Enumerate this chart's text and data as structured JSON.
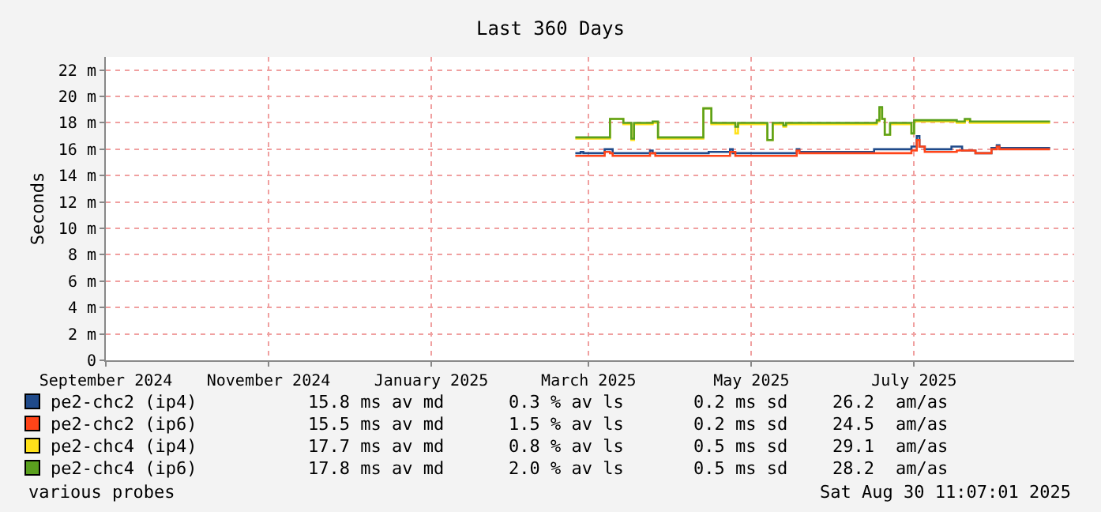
{
  "chart_data": {
    "type": "step",
    "title": "Last 360 Days",
    "ylabel": "Seconds",
    "xlim": [
      "2024-09-01",
      "2025-08-30"
    ],
    "xticks": [
      {
        "value": "2024-09-01",
        "label": "September 2024"
      },
      {
        "value": "2024-11-01",
        "label": "November 2024"
      },
      {
        "value": "2025-01-01",
        "label": "January 2025"
      },
      {
        "value": "2025-03-01",
        "label": "March 2025"
      },
      {
        "value": "2025-05-01",
        "label": "May 2025"
      },
      {
        "value": "2025-07-01",
        "label": "July 2025"
      }
    ],
    "ylim": [
      0,
      23
    ],
    "yticks": [
      0,
      {
        "value": 2,
        "label": "2 m"
      },
      {
        "value": 4,
        "label": "4 m"
      },
      {
        "value": 6,
        "label": "6 m"
      },
      {
        "value": 8,
        "label": "8 m"
      },
      {
        "value": 10,
        "label": "10 m"
      },
      {
        "value": 12,
        "label": "12 m"
      },
      {
        "value": 14,
        "label": "14 m"
      },
      {
        "value": 16,
        "label": "16 m"
      },
      {
        "value": 18,
        "label": "18 m"
      },
      {
        "value": 20,
        "label": "20 m"
      },
      {
        "value": 22,
        "label": "22 m"
      }
    ],
    "grid": true,
    "legend": "bottom",
    "series": [
      {
        "name": "pe2-chc2 (ip4)",
        "color": "#1f4a8a",
        "x": [
          "2025-02-24",
          "2025-02-26",
          "2025-02-27",
          "2025-03-06",
          "2025-03-07",
          "2025-03-09",
          "2025-03-10",
          "2025-03-23",
          "2025-03-24",
          "2025-03-25",
          "2025-04-13",
          "2025-04-15",
          "2025-04-22",
          "2025-04-23",
          "2025-04-24",
          "2025-05-06",
          "2025-05-17",
          "2025-05-18",
          "2025-05-19",
          "2025-06-08",
          "2025-06-16",
          "2025-06-28",
          "2025-06-30",
          "2025-07-02",
          "2025-07-03",
          "2025-07-05",
          "2025-07-14",
          "2025-07-15",
          "2025-07-18",
          "2025-07-19",
          "2025-07-23",
          "2025-07-24",
          "2025-07-29",
          "2025-07-30",
          "2025-08-01",
          "2025-08-02",
          "2025-08-21"
        ],
        "values": [
          15.7,
          15.8,
          15.7,
          15.7,
          16.0,
          16.0,
          15.7,
          15.7,
          15.9,
          15.7,
          15.7,
          15.8,
          15.8,
          16.0,
          15.7,
          15.7,
          15.7,
          16.0,
          15.8,
          15.8,
          16.0,
          16.0,
          16.2,
          17.0,
          16.2,
          16.0,
          16.0,
          16.2,
          16.2,
          15.9,
          15.9,
          15.7,
          15.7,
          16.1,
          16.3,
          16.1,
          16.1
        ]
      },
      {
        "name": "pe2-chc2 (ip6)",
        "color": "#ff4418",
        "x": [
          "2025-02-24",
          "2025-03-06",
          "2025-03-07",
          "2025-03-09",
          "2025-03-10",
          "2025-03-23",
          "2025-03-24",
          "2025-03-26",
          "2025-04-22",
          "2025-04-23",
          "2025-04-25",
          "2025-05-17",
          "2025-05-18",
          "2025-05-19",
          "2025-06-08",
          "2025-06-26",
          "2025-06-30",
          "2025-07-02",
          "2025-07-03",
          "2025-07-05",
          "2025-07-15",
          "2025-07-17",
          "2025-07-23",
          "2025-07-24",
          "2025-07-29",
          "2025-07-30",
          "2025-08-01",
          "2025-08-02",
          "2025-08-21"
        ],
        "values": [
          15.5,
          15.5,
          15.8,
          15.7,
          15.5,
          15.5,
          15.7,
          15.5,
          15.5,
          15.8,
          15.5,
          15.5,
          15.9,
          15.7,
          15.7,
          15.7,
          15.9,
          16.7,
          16.2,
          15.8,
          15.8,
          15.9,
          15.9,
          15.7,
          15.7,
          16.0,
          16.2,
          16.0,
          16.0
        ]
      },
      {
        "name": "pe2-chc4 (ip4)",
        "color": "#ffe11a",
        "x": [
          "2025-02-24",
          "2025-03-08",
          "2025-03-09",
          "2025-03-14",
          "2025-03-16",
          "2025-03-17",
          "2025-03-18",
          "2025-03-25",
          "2025-03-27",
          "2025-04-12",
          "2025-04-13",
          "2025-04-15",
          "2025-04-16",
          "2025-04-24",
          "2025-04-25",
          "2025-04-26",
          "2025-05-06",
          "2025-05-07",
          "2025-05-09",
          "2025-05-13",
          "2025-05-14",
          "2025-06-08",
          "2025-06-17",
          "2025-06-18",
          "2025-06-19",
          "2025-06-20",
          "2025-06-22",
          "2025-06-29",
          "2025-06-30",
          "2025-07-01",
          "2025-07-17",
          "2025-07-20",
          "2025-07-22",
          "2025-08-06",
          "2025-08-21"
        ],
        "values": [
          16.8,
          16.8,
          18.3,
          17.9,
          17.9,
          16.7,
          17.9,
          18.0,
          16.8,
          16.8,
          19.1,
          19.1,
          17.9,
          17.9,
          17.2,
          17.9,
          17.9,
          16.7,
          17.9,
          17.7,
          17.9,
          17.9,
          18.1,
          19.1,
          18.3,
          17.1,
          17.9,
          17.9,
          17.2,
          18.1,
          18.0,
          18.2,
          18.0,
          18.0,
          18.0
        ]
      },
      {
        "name": "pe2-chc4 (ip6)",
        "color": "#5aa01e",
        "x": [
          "2025-02-24",
          "2025-03-08",
          "2025-03-09",
          "2025-03-14",
          "2025-03-16",
          "2025-03-17",
          "2025-03-18",
          "2025-03-25",
          "2025-03-27",
          "2025-04-12",
          "2025-04-13",
          "2025-04-15",
          "2025-04-16",
          "2025-04-24",
          "2025-04-25",
          "2025-04-26",
          "2025-05-06",
          "2025-05-07",
          "2025-05-09",
          "2025-05-13",
          "2025-05-14",
          "2025-06-08",
          "2025-06-17",
          "2025-06-18",
          "2025-06-19",
          "2025-06-20",
          "2025-06-22",
          "2025-06-29",
          "2025-06-30",
          "2025-07-01",
          "2025-07-17",
          "2025-07-20",
          "2025-07-22",
          "2025-08-06",
          "2025-08-21"
        ],
        "values": [
          16.9,
          16.9,
          18.3,
          18.0,
          18.0,
          16.8,
          18.0,
          18.1,
          16.9,
          16.9,
          19.1,
          19.1,
          18.0,
          18.0,
          17.7,
          18.0,
          18.0,
          16.7,
          18.0,
          17.8,
          18.0,
          18.0,
          18.2,
          19.2,
          18.3,
          17.1,
          18.0,
          18.0,
          17.2,
          18.2,
          18.1,
          18.3,
          18.1,
          18.1,
          18.1
        ]
      }
    ],
    "annotations": [
      "15.8 ms av md",
      "0.3 % av ls",
      "0.2 ms sd",
      "26.2",
      "am/as",
      "15.5 ms av md",
      "1.5 % av ls",
      "0.2 ms sd",
      "24.5",
      "am/as",
      "17.7 ms av md",
      "0.8 % av ls",
      "0.5 ms sd",
      "29.1",
      "am/as",
      "17.8 ms av md",
      "2.0 % av ls",
      "0.5 ms sd",
      "28.2",
      "am/as",
      "various probes",
      "Sat Aug 30 11:07:01 2025"
    ]
  }
}
